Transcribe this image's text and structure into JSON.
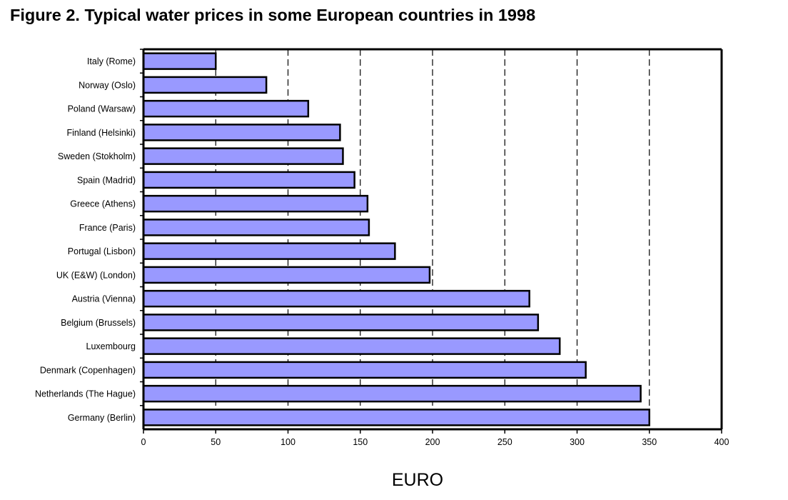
{
  "chart_data": {
    "type": "bar",
    "orientation": "horizontal",
    "title": "Figure 2. Typical water prices in some European countries in 1998",
    "xlabel": "EURO",
    "ylabel": "",
    "categories": [
      "Italy (Rome)",
      "Norway (Oslo)",
      "Poland (Warsaw)",
      "Finland (Helsinki)",
      "Sweden (Stokholm)",
      "Spain (Madrid)",
      "Greece (Athens)",
      "France (Paris)",
      "Portugal (Lisbon)",
      "UK (E&W) (London)",
      "Austria (Vienna)",
      "Belgium (Brussels)",
      "Luxembourg",
      "Denmark (Copenhagen)",
      "Netherlands (The Hague)",
      "Germany (Berlin)"
    ],
    "values": [
      50,
      85,
      114,
      136,
      138,
      146,
      155,
      156,
      174,
      198,
      267,
      273,
      288,
      306,
      344,
      350
    ],
    "xlim": [
      0,
      400
    ],
    "xticks": [
      0,
      50,
      100,
      150,
      200,
      250,
      300,
      350,
      400
    ],
    "grid": "vertical dashed",
    "legend": "none",
    "colors": {
      "bar": "#9999ff",
      "edge": "#000000"
    }
  }
}
